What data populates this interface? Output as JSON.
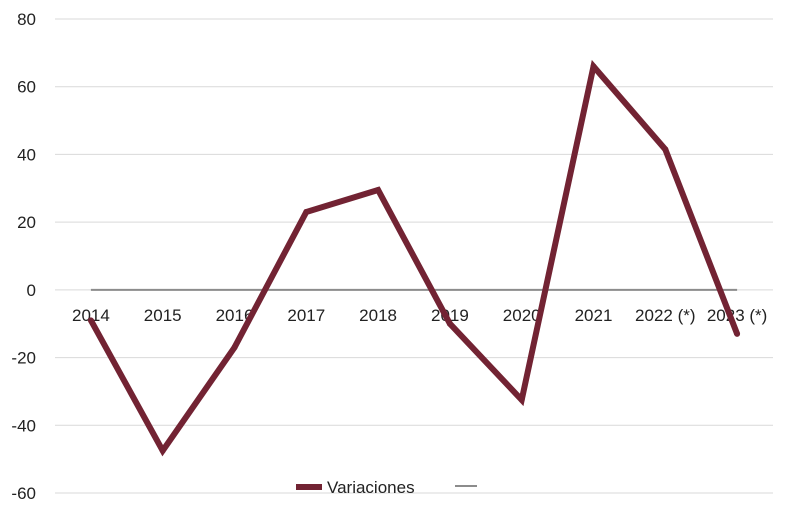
{
  "chart_data": {
    "type": "line",
    "categories": [
      "2014",
      "2015",
      "2016",
      "2017",
      "2018",
      "2019",
      "2020",
      "2021",
      "2022 (*)",
      "2023 (*)"
    ],
    "series": [
      {
        "name": "Variaciones",
        "values": [
          -9,
          -47.5,
          -17,
          23,
          29.5,
          -10,
          -32.5,
          66,
          41.5,
          -13
        ],
        "color": "#722333"
      },
      {
        "name": "",
        "values": [
          0,
          0,
          0,
          0,
          0,
          0,
          0,
          0,
          0,
          0
        ],
        "color": "#8c8c8c"
      }
    ],
    "ylim": [
      -60,
      80
    ],
    "yticks": [
      80,
      60,
      40,
      20,
      0,
      -20,
      -40,
      -60
    ],
    "grid": true,
    "legend_position": "bottom"
  }
}
